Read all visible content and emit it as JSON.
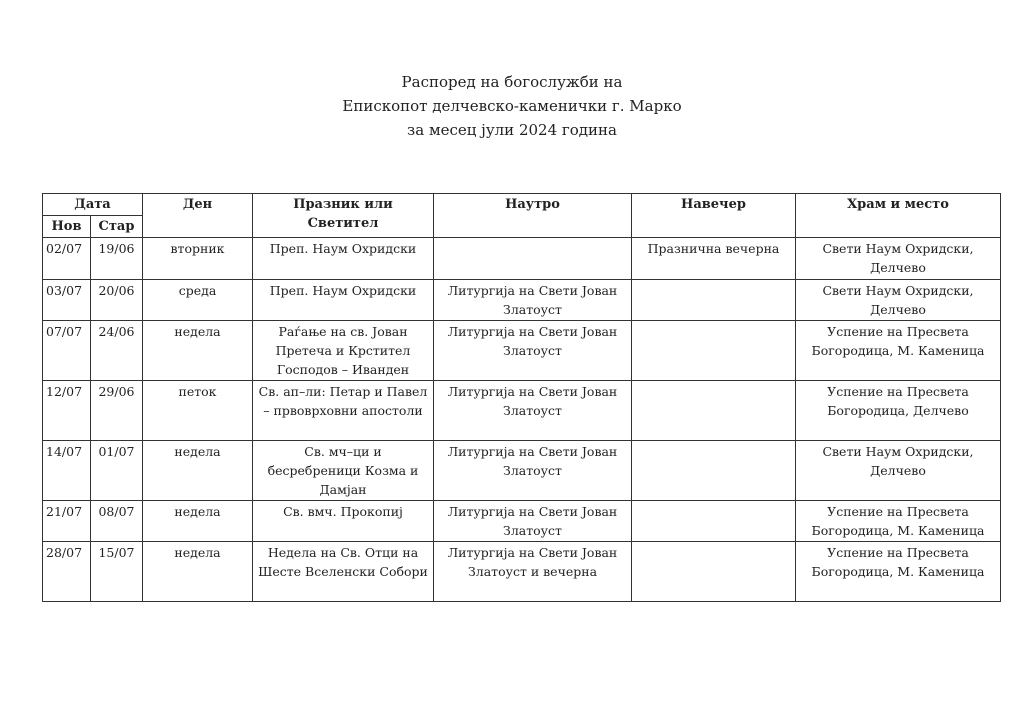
{
  "title": [
    "Распоред на богослужби на",
    "Епископот делчевско-каменички г. Марко",
    "за месец јули 2024 година"
  ],
  "headers": {
    "date": "Дата",
    "new": "Нов",
    "old": "Стар",
    "day": "Ден",
    "feast": "Празник или Светител",
    "morning": "Наутро",
    "evening": "Навечер",
    "church": "Храм и место"
  },
  "rows": [
    {
      "new": "02/07",
      "old": "19/06",
      "day": "вторник",
      "feast": "Преп. Наум Охридски",
      "morning": "",
      "evening": "Празнична вечерна",
      "church": "Свети Наум Охридски, Делчево"
    },
    {
      "new": "03/07",
      "old": "20/06",
      "day": "среда",
      "feast": "Преп. Наум Охридски",
      "morning": "Литургија на Свети Јован Златоуст",
      "evening": "",
      "church": "Свети Наум Охридски, Делчево"
    },
    {
      "new": "07/07",
      "old": "24/06",
      "day": "недела",
      "feast": "Раѓање на св. Јован Претеча и Крстител Господов – Иванден",
      "morning": "Литургија на Свети Јован Златоуст",
      "evening": "",
      "church": "Успение на Пресвета Богородица, М. Каменица"
    },
    {
      "new": "12/07",
      "old": "29/06",
      "day": "петок",
      "feast": "Св. ап–ли: Петар и Павел – првоврховни апостоли",
      "morning": "Литургија на Свети Јован Златоуст",
      "evening": "",
      "church": "Успение на Пресвета Богородица, Делчево"
    },
    {
      "new": "14/07",
      "old": "01/07",
      "day": "недела",
      "feast": "Св. мч–ци и бесребреници Козма и Дамјан",
      "morning": "Литургија на Свети Јован Златоуст",
      "evening": "",
      "church": "Свети Наум Охридски, Делчево"
    },
    {
      "new": "21/07",
      "old": "08/07",
      "day": "недела",
      "feast": "Св. вмч. Прокопиј",
      "morning": "Литургија на Свети Јован Златоуст",
      "evening": "",
      "church": "Успение на Пресвета Богородица, М. Каменица"
    },
    {
      "new": "28/07",
      "old": "15/07",
      "day": "недела",
      "feast": "Недела на Св. Отци на Шесте Вселенски Собори",
      "morning": "Литургија на Свети Јован Златоуст и вечерна",
      "evening": "",
      "church": "Успение на Пресвета Богородица, М. Каменица"
    }
  ]
}
